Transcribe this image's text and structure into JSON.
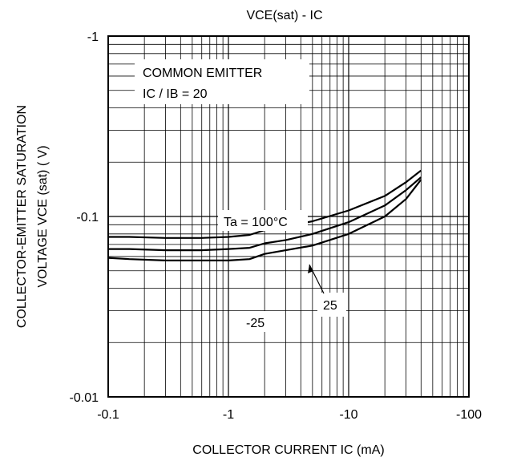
{
  "chart_data": {
    "type": "line",
    "title": "VCE(sat) - IC",
    "xlabel": "COLLECTOR CURRENT  IC (mA)",
    "ylabel_line1": "COLLECTOR-EMITTER SATURATION",
    "ylabel_line2": "VOLTAGE  VCE (sat) ( V)",
    "x_scale": "log",
    "y_scale": "log",
    "xlim": [
      -0.1,
      -100
    ],
    "ylim": [
      -0.01,
      -1
    ],
    "x_ticks": [
      {
        "value": -0.1,
        "label": "-0.1"
      },
      {
        "value": -1,
        "label": "-1"
      },
      {
        "value": -10,
        "label": "-10"
      },
      {
        "value": -100,
        "label": "-100"
      }
    ],
    "y_ticks": [
      {
        "value": -0.01,
        "label": "-0.01"
      },
      {
        "value": -0.1,
        "label": "-0.1"
      },
      {
        "value": -1,
        "label": "-1"
      }
    ],
    "grid": true,
    "annotation_box": {
      "line1": "COMMON EMITTER",
      "line2": "IC / IB = 20"
    },
    "series": [
      {
        "name": "Ta = 100°C",
        "x": [
          -0.1,
          -0.15,
          -0.3,
          -0.6,
          -1,
          -1.5,
          -2,
          -3,
          -5,
          -10,
          -20,
          -30,
          -40
        ],
        "y": [
          -0.077,
          -0.077,
          -0.076,
          -0.076,
          -0.077,
          -0.079,
          -0.084,
          -0.088,
          -0.094,
          -0.108,
          -0.13,
          -0.155,
          -0.18
        ]
      },
      {
        "name": "25",
        "x": [
          -0.1,
          -0.15,
          -0.3,
          -0.6,
          -1,
          -1.5,
          -2,
          -3,
          -5,
          -10,
          -20,
          -30,
          -40
        ],
        "y": [
          -0.066,
          -0.066,
          -0.065,
          -0.065,
          -0.066,
          -0.067,
          -0.071,
          -0.074,
          -0.08,
          -0.093,
          -0.115,
          -0.14,
          -0.165
        ]
      },
      {
        "name": "-25",
        "x": [
          -0.1,
          -0.15,
          -0.3,
          -0.6,
          -1,
          -1.5,
          -2,
          -3,
          -5,
          -10,
          -20,
          -30,
          -40
        ],
        "y": [
          -0.059,
          -0.058,
          -0.057,
          -0.057,
          -0.057,
          -0.058,
          -0.062,
          -0.065,
          -0.069,
          -0.08,
          -0.1,
          -0.125,
          -0.16
        ]
      }
    ]
  }
}
